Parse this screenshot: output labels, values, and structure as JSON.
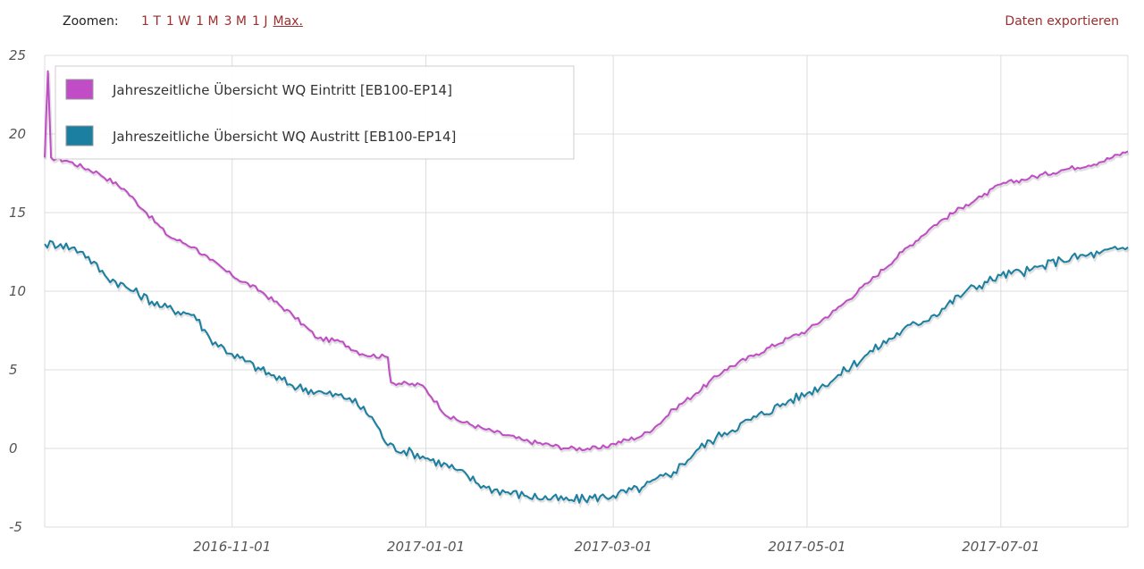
{
  "toolbar": {
    "zoom_label": "Zoomen:",
    "zoom_options": [
      "1 T",
      "1 W",
      "1 M",
      "3 M",
      "1 J",
      "Max."
    ],
    "zoom_active": "Max.",
    "export_label": "Daten exportieren"
  },
  "colors": {
    "eintritt": "#c04cc6",
    "austritt": "#1a7fa0",
    "grid": "#dddddd",
    "link": "#9b2e2e"
  },
  "chart_data": {
    "type": "line",
    "title": "",
    "xlabel": "",
    "ylabel": "",
    "ylim": [
      -5,
      25
    ],
    "xlim": [
      "2016-09-03",
      "2017-08-10"
    ],
    "yticks": [
      "25",
      "20",
      "15",
      "10",
      "5",
      "0",
      "-5"
    ],
    "xticks": [
      "2016-11-01",
      "2017-01-01",
      "2017-03-01",
      "2017-05-01",
      "2017-07-01"
    ],
    "grid": true,
    "legend_position": "top-left",
    "series": [
      {
        "name": "Jahreszeitliche Übersicht WQ Eintritt [EB100-EP14]",
        "color": "#c04cc6",
        "points": [
          [
            "2016-09-03",
            18.5
          ],
          [
            "2016-09-04",
            24.0
          ],
          [
            "2016-09-05",
            18.5
          ],
          [
            "2016-09-10",
            18.3
          ],
          [
            "2016-09-20",
            17.5
          ],
          [
            "2016-09-28",
            16.5
          ],
          [
            "2016-10-05",
            15.0
          ],
          [
            "2016-10-12",
            13.5
          ],
          [
            "2016-10-20",
            12.8
          ],
          [
            "2016-10-25",
            12.0
          ],
          [
            "2016-11-01",
            11.0
          ],
          [
            "2016-11-10",
            10.0
          ],
          [
            "2016-11-20",
            8.5
          ],
          [
            "2016-11-28",
            7.0
          ],
          [
            "2016-12-05",
            6.8
          ],
          [
            "2016-12-12",
            6.0
          ],
          [
            "2016-12-20",
            5.8
          ],
          [
            "2016-12-21",
            4.2
          ],
          [
            "2016-12-31",
            4.0
          ],
          [
            "2017-01-08",
            2.0
          ],
          [
            "2017-01-20",
            1.2
          ],
          [
            "2017-02-01",
            0.5
          ],
          [
            "2017-02-15",
            0.0
          ],
          [
            "2017-02-25",
            0.0
          ],
          [
            "2017-03-01",
            0.3
          ],
          [
            "2017-03-10",
            0.8
          ],
          [
            "2017-03-15",
            1.5
          ],
          [
            "2017-03-20",
            2.5
          ],
          [
            "2017-03-27",
            3.5
          ],
          [
            "2017-04-05",
            5.0
          ],
          [
            "2017-04-15",
            6.0
          ],
          [
            "2017-04-25",
            7.0
          ],
          [
            "2017-05-01",
            7.5
          ],
          [
            "2017-05-10",
            8.8
          ],
          [
            "2017-05-20",
            10.5
          ],
          [
            "2017-05-31",
            12.5
          ],
          [
            "2017-06-10",
            14.2
          ],
          [
            "2017-06-20",
            15.5
          ],
          [
            "2017-06-25",
            16.0
          ],
          [
            "2017-07-01",
            16.8
          ],
          [
            "2017-07-10",
            17.2
          ],
          [
            "2017-07-20",
            17.7
          ],
          [
            "2017-08-01",
            18.2
          ],
          [
            "2017-08-10",
            18.9
          ]
        ]
      },
      {
        "name": "Jahreszeitliche Übersicht WQ Austritt [EB100-EP14]",
        "color": "#1a7fa0",
        "points": [
          [
            "2016-09-03",
            13.0
          ],
          [
            "2016-09-08",
            13.0
          ],
          [
            "2016-09-15",
            12.5
          ],
          [
            "2016-09-22",
            11.0
          ],
          [
            "2016-10-01",
            10.0
          ],
          [
            "2016-10-10",
            9.0
          ],
          [
            "2016-10-20",
            8.5
          ],
          [
            "2016-10-25",
            7.0
          ],
          [
            "2016-11-01",
            6.0
          ],
          [
            "2016-11-10",
            5.0
          ],
          [
            "2016-11-20",
            4.0
          ],
          [
            "2016-11-30",
            3.5
          ],
          [
            "2016-12-08",
            3.2
          ],
          [
            "2016-12-15",
            2.0
          ],
          [
            "2016-12-20",
            0.2
          ],
          [
            "2016-12-31",
            -0.5
          ],
          [
            "2017-01-10",
            -1.3
          ],
          [
            "2017-01-20",
            -2.5
          ],
          [
            "2017-02-01",
            -3.0
          ],
          [
            "2017-02-15",
            -3.3
          ],
          [
            "2017-03-01",
            -3.0
          ],
          [
            "2017-03-10",
            -2.5
          ],
          [
            "2017-03-20",
            -1.5
          ],
          [
            "2017-03-28",
            0.0
          ],
          [
            "2017-04-05",
            1.0
          ],
          [
            "2017-04-15",
            2.0
          ],
          [
            "2017-04-25",
            3.0
          ],
          [
            "2017-05-01",
            3.5
          ],
          [
            "2017-05-10",
            4.5
          ],
          [
            "2017-05-20",
            6.0
          ],
          [
            "2017-05-31",
            7.5
          ],
          [
            "2017-06-10",
            8.5
          ],
          [
            "2017-06-20",
            10.0
          ],
          [
            "2017-07-01",
            11.0
          ],
          [
            "2017-07-10",
            11.3
          ],
          [
            "2017-07-20",
            12.0
          ],
          [
            "2017-08-01",
            12.4
          ],
          [
            "2017-08-10",
            12.8
          ]
        ]
      }
    ]
  }
}
